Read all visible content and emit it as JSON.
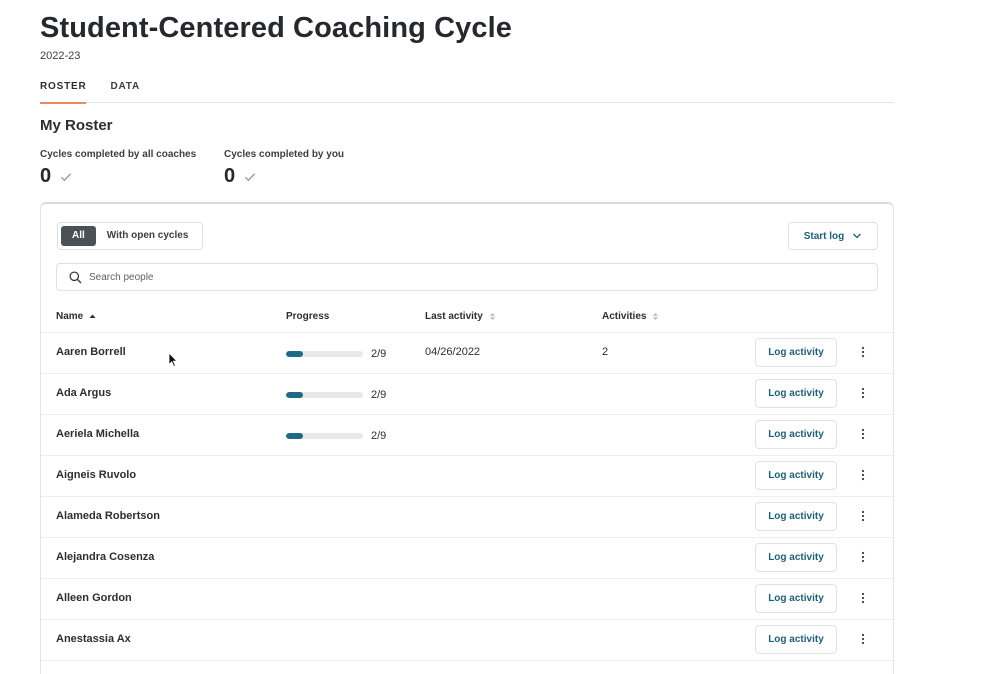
{
  "header": {
    "title": "Student-Centered Coaching Cycle",
    "subtitle": "2022-23"
  },
  "tabs": [
    {
      "label": "ROSTER",
      "active": true
    },
    {
      "label": "DATA",
      "active": false
    }
  ],
  "section_title": "My Roster",
  "stats": [
    {
      "label": "Cycles completed by all coaches",
      "value": "0"
    },
    {
      "label": "Cycles completed by you",
      "value": "0"
    }
  ],
  "filters": [
    {
      "label": "All",
      "active": true
    },
    {
      "label": "With open cycles",
      "active": false
    }
  ],
  "start_log_label": "Start log",
  "search": {
    "placeholder": "Search people",
    "value": ""
  },
  "columns": {
    "name": "Name",
    "progress": "Progress",
    "last_activity": "Last activity",
    "activities": "Activities"
  },
  "log_button_label": "Log activity",
  "rows": [
    {
      "name": "Aaren Borrell",
      "progress_text": "2/9",
      "progress_fraction": 0.222,
      "last_activity": "04/26/2022",
      "activities": "2"
    },
    {
      "name": "Ada Argus",
      "progress_text": "2/9",
      "progress_fraction": 0.222,
      "last_activity": "",
      "activities": ""
    },
    {
      "name": "Aeriela Michella",
      "progress_text": "2/9",
      "progress_fraction": 0.222,
      "last_activity": "",
      "activities": ""
    },
    {
      "name": "Aigneis Ruvolo",
      "progress_text": "",
      "progress_fraction": null,
      "last_activity": "",
      "activities": ""
    },
    {
      "name": "Alameda Robertson",
      "progress_text": "",
      "progress_fraction": null,
      "last_activity": "",
      "activities": ""
    },
    {
      "name": "Alejandra Cosenza",
      "progress_text": "",
      "progress_fraction": null,
      "last_activity": "",
      "activities": ""
    },
    {
      "name": "Alleen Gordon",
      "progress_text": "",
      "progress_fraction": null,
      "last_activity": "",
      "activities": ""
    },
    {
      "name": "Anestassia Ax",
      "progress_text": "",
      "progress_fraction": null,
      "last_activity": "",
      "activities": ""
    }
  ],
  "colors": {
    "accent_tab": "#e98b5a",
    "progress_fill": "#1f6b86",
    "link_text": "#1f5f77",
    "filter_active_bg": "#4a5259"
  },
  "icons": {
    "search": "search-icon",
    "check": "check-icon",
    "chevron": "chevron-down-icon",
    "sort_asc": "sort-asc-icon",
    "sort_both": "sort-icon",
    "kebab": "more-vertical-icon",
    "cursor": "mouse-pointer-icon"
  }
}
